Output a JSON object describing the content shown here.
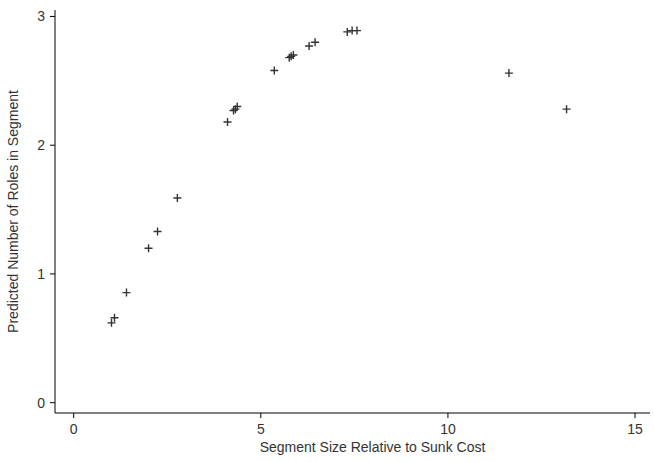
{
  "chart_data": {
    "type": "scatter",
    "x_label": "Segment Size Relative to Sunk Cost",
    "y_label": "Predicted Number of Roles in Segment",
    "x": [
      1.01,
      1.09,
      1.41,
      2.0,
      2.24,
      2.77,
      4.11,
      4.27,
      4.32,
      4.37,
      5.36,
      5.76,
      5.81,
      5.87,
      6.29,
      6.45,
      7.31,
      7.44,
      7.57,
      11.63,
      13.17
    ],
    "values": [
      0.62,
      0.66,
      0.855,
      1.2,
      1.33,
      1.59,
      2.18,
      2.27,
      2.28,
      2.3,
      2.58,
      2.68,
      2.69,
      2.7,
      2.77,
      2.8,
      2.88,
      2.89,
      2.89,
      2.56,
      2.28
    ],
    "xlim": [
      -0.5,
      15.4
    ],
    "xticks": [
      0,
      5,
      10,
      15
    ],
    "ylim": [
      -0.08,
      3.05
    ],
    "yticks": [
      0,
      1,
      2,
      3
    ],
    "color": "#333333",
    "marker": "plus",
    "grid": false
  }
}
